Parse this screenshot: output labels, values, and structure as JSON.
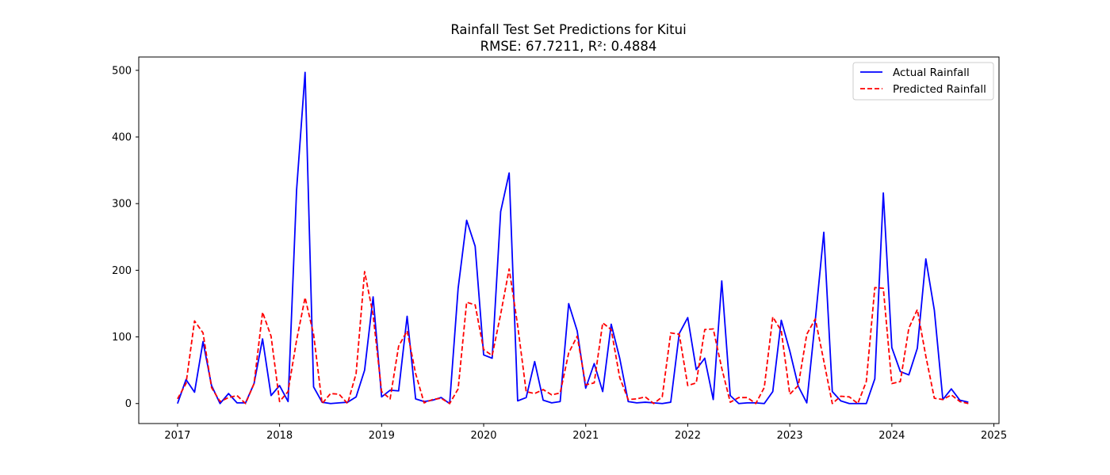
{
  "chart_data": {
    "type": "line",
    "title": "Rainfall Test Set Predictions for Kitui",
    "subtitle": "RMSE: 67.7211, R²: 0.4884",
    "xlabel": "",
    "ylabel": "",
    "x_start": 2017.0,
    "x_step": 0.08333,
    "xlim": [
      2016.62,
      2025.05
    ],
    "ylim": [
      -30,
      520
    ],
    "xticks": [
      2017,
      2018,
      2019,
      2020,
      2021,
      2022,
      2023,
      2024,
      2025
    ],
    "xtick_labels": [
      "2017",
      "2018",
      "2019",
      "2020",
      "2021",
      "2022",
      "2023",
      "2024",
      "2025"
    ],
    "yticks": [
      0,
      100,
      200,
      300,
      400,
      500
    ],
    "ytick_labels": [
      "0",
      "100",
      "200",
      "300",
      "400",
      "500"
    ],
    "grid": false,
    "legend_position": "top-right",
    "series": [
      {
        "name": "Actual Rainfall",
        "color": "#0000ff",
        "style": "solid",
        "values": [
          0,
          36,
          17,
          93,
          27,
          0,
          15,
          1,
          1,
          30,
          97,
          12,
          27,
          3,
          320,
          497,
          25,
          2,
          0,
          1,
          2,
          10,
          50,
          160,
          10,
          20,
          19,
          131,
          7,
          3,
          5,
          9,
          0,
          173,
          275,
          236,
          73,
          68,
          288,
          346,
          4,
          9,
          63,
          5,
          1,
          3,
          150,
          109,
          23,
          60,
          18,
          119,
          68,
          3,
          1,
          2,
          1,
          0,
          2,
          105,
          129,
          51,
          68,
          6,
          184,
          12,
          0,
          1,
          1,
          0,
          18,
          125,
          79,
          26,
          1,
          125,
          257,
          18,
          4,
          0,
          0,
          0,
          37,
          316,
          84,
          48,
          43,
          83,
          217,
          140,
          6,
          22,
          5,
          2
        ]
      },
      {
        "name": "Predicted Rainfall",
        "color": "#ff0000",
        "style": "dashed",
        "values": [
          7,
          30,
          124,
          106,
          24,
          3,
          9,
          12,
          0,
          30,
          137,
          101,
          3,
          18,
          95,
          159,
          104,
          0,
          15,
          14,
          0,
          45,
          198,
          133,
          18,
          7,
          86,
          109,
          45,
          1,
          6,
          8,
          0,
          22,
          152,
          148,
          81,
          72,
          134,
          202,
          117,
          18,
          15,
          21,
          13,
          16,
          76,
          101,
          28,
          31,
          121,
          111,
          39,
          6,
          7,
          10,
          0,
          10,
          106,
          104,
          27,
          31,
          111,
          112,
          53,
          2,
          9,
          9,
          0,
          24,
          130,
          109,
          14,
          27,
          104,
          127,
          64,
          0,
          11,
          10,
          0,
          33,
          174,
          173,
          30,
          33,
          113,
          141,
          71,
          8,
          6,
          13,
          3,
          0
        ]
      }
    ]
  }
}
